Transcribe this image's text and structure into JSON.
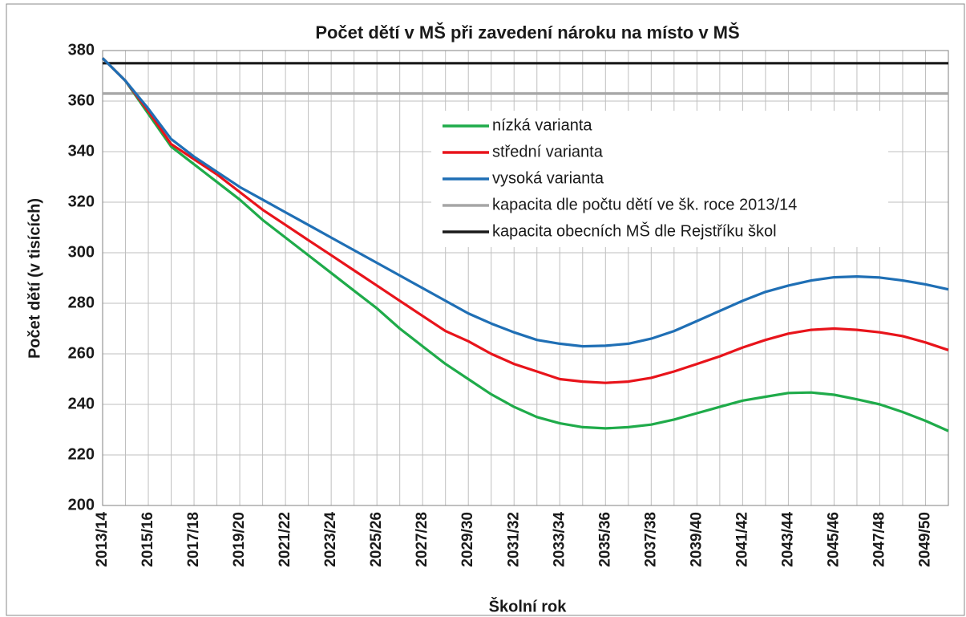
{
  "chart_data": {
    "type": "line",
    "title": "Počet dětí v MŠ při zavedení nároku na místo v MŠ",
    "x_label": "Školní rok",
    "y_label": "Počet dětí (v tisících)",
    "categories": [
      "2013/14",
      null,
      "2015/16",
      null,
      "2017/18",
      null,
      "2019/20",
      null,
      "2021/22",
      null,
      "2023/24",
      null,
      "2025/26",
      null,
      "2027/28",
      null,
      "2029/30",
      null,
      "2031/32",
      null,
      "2033/34",
      null,
      "2035/36",
      null,
      "2037/38",
      null,
      "2039/40",
      null,
      "2041/42",
      null,
      "2043/44",
      null,
      "2045/46",
      null,
      "2047/48",
      null,
      "2049/50",
      null
    ],
    "ylim": [
      200,
      380
    ],
    "yticks": [
      200,
      220,
      240,
      260,
      280,
      300,
      320,
      340,
      360,
      380
    ],
    "grid": true,
    "legend": "upper right",
    "series": [
      {
        "name": "nízká varianta",
        "color": "#1fab4a",
        "values": [
          377,
          368,
          355,
          342,
          335,
          328,
          321,
          313,
          306,
          299,
          292,
          285,
          278,
          270,
          263,
          256,
          250,
          244,
          239,
          235,
          232.5,
          231,
          230.5,
          231,
          232,
          234,
          236.5,
          239,
          241.5,
          243,
          244.5,
          244.7,
          243.8,
          242,
          240,
          237,
          233.5,
          229.5
        ]
      },
      {
        "name": "střední varianta",
        "color": "#e8141b",
        "values": [
          377,
          368,
          356,
          343,
          337,
          331,
          324,
          317,
          311,
          305,
          299,
          293,
          287,
          281,
          275,
          269,
          265,
          260,
          256,
          253,
          250,
          249,
          248.5,
          249,
          250.5,
          253,
          256,
          259,
          262.5,
          265.5,
          268,
          269.5,
          270,
          269.5,
          268.5,
          267,
          264.5,
          261.5
        ]
      },
      {
        "name": "vysoká varianta",
        "color": "#1f6fb5",
        "values": [
          377,
          368,
          357,
          345,
          338,
          332,
          326,
          321,
          316,
          311,
          306,
          301,
          296,
          291,
          286,
          281,
          276,
          272,
          268.5,
          265.5,
          264,
          263,
          263.2,
          264,
          266,
          269,
          273,
          277,
          281,
          284.5,
          287,
          289,
          290.3,
          290.6,
          290.2,
          289,
          287.5,
          285.5
        ]
      },
      {
        "name": "kapacita dle počtu dětí ve šk. roce 2013/14",
        "color": "#a6a6a6",
        "values": [
          363,
          363,
          363,
          363,
          363,
          363,
          363,
          363,
          363,
          363,
          363,
          363,
          363,
          363,
          363,
          363,
          363,
          363,
          363,
          363,
          363,
          363,
          363,
          363,
          363,
          363,
          363,
          363,
          363,
          363,
          363,
          363,
          363,
          363,
          363,
          363,
          363,
          363
        ]
      },
      {
        "name": "kapacita obecních MŠ dle Rejstříku škol",
        "color": "#1a1a1a",
        "values": [
          375,
          375,
          375,
          375,
          375,
          375,
          375,
          375,
          375,
          375,
          375,
          375,
          375,
          375,
          375,
          375,
          375,
          375,
          375,
          375,
          375,
          375,
          375,
          375,
          375,
          375,
          375,
          375,
          375,
          375,
          375,
          375,
          375,
          375,
          375,
          375,
          375,
          375
        ]
      }
    ]
  }
}
